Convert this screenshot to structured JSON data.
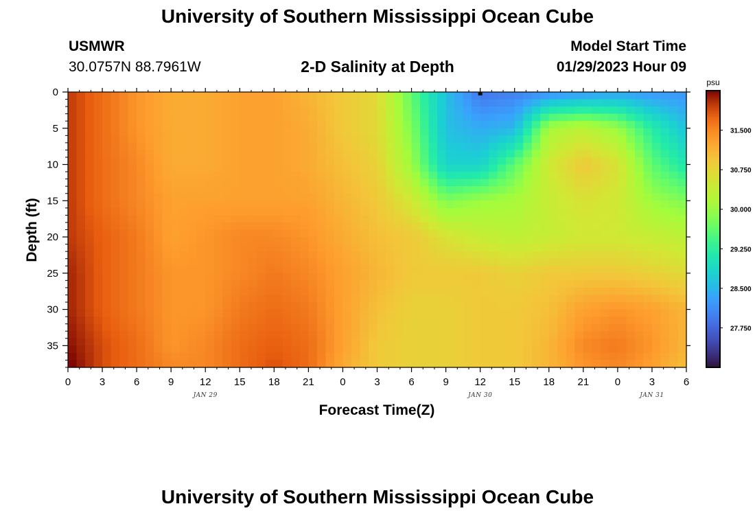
{
  "header": {
    "title": "University of Southern Mississippi Ocean Cube",
    "station": "USMWR",
    "coords": "30.0757N  88.7961W",
    "plot_title": "2-D Salinity at Depth",
    "model_label": "Model Start Time",
    "model_time": "01/29/2023 Hour 09"
  },
  "footer": {
    "title": "University of Southern Mississippi Ocean Cube"
  },
  "chart_data": {
    "type": "heatmap",
    "title": "2-D Salinity at Depth",
    "xlabel": "Forecast Time(Z)",
    "ylabel": "Depth (ft)",
    "x_ticks": [
      "0",
      "3",
      "6",
      "9",
      "12",
      "15",
      "18",
      "21",
      "0",
      "3",
      "6",
      "9",
      "12",
      "15",
      "18",
      "21",
      "0",
      "3",
      "6"
    ],
    "x_range_hours": [
      0,
      54
    ],
    "y_ticks": [
      "0",
      "5",
      "10",
      "15",
      "20",
      "25",
      "30",
      "35"
    ],
    "y_range": [
      0,
      38
    ],
    "y_inverted": true,
    "date_labels": [
      {
        "text": "JAN 29",
        "hour": 12
      },
      {
        "text": "JAN 30",
        "hour": 36
      },
      {
        "text": "JAN 31",
        "hour": 51
      }
    ],
    "colorbar": {
      "unit": "psu",
      "range": [
        27.0,
        32.25
      ],
      "ticks": [
        "31.500",
        "30.750",
        "30.000",
        "29.250",
        "28.500",
        "27.750"
      ],
      "tick_values": [
        31.5,
        30.75,
        30.0,
        29.25,
        28.5,
        27.75
      ],
      "colormap": "turbo"
    },
    "salinity_grid": {
      "x_hours": [
        0,
        3,
        6,
        9,
        12,
        15,
        18,
        21,
        24,
        27,
        30,
        33,
        36,
        39,
        42,
        45,
        48,
        51,
        54
      ],
      "depths_ft": [
        0,
        5,
        10,
        15,
        20,
        25,
        30,
        35,
        38
      ],
      "values": [
        [
          32.0,
          31.7,
          31.4,
          31.2,
          31.2,
          31.3,
          31.3,
          31.1,
          30.9,
          30.7,
          29.6,
          28.6,
          27.9,
          28.0,
          28.1,
          28.2,
          28.3,
          28.2,
          28.2
        ],
        [
          32.0,
          31.7,
          31.4,
          31.2,
          31.2,
          31.3,
          31.3,
          31.2,
          30.9,
          30.7,
          29.8,
          28.6,
          28.4,
          28.5,
          30.1,
          30.3,
          30.0,
          29.2,
          28.6
        ],
        [
          32.0,
          31.7,
          31.5,
          31.2,
          31.2,
          31.3,
          31.3,
          31.2,
          31.0,
          30.8,
          30.0,
          28.8,
          28.8,
          29.6,
          30.5,
          30.9,
          30.6,
          29.6,
          29.1
        ],
        [
          32.0,
          31.7,
          31.5,
          31.3,
          31.3,
          31.3,
          31.3,
          31.3,
          31.1,
          30.9,
          30.5,
          29.8,
          30.0,
          30.1,
          30.4,
          30.6,
          30.5,
          30.0,
          29.8
        ],
        [
          32.0,
          31.8,
          31.6,
          31.3,
          31.4,
          31.5,
          31.5,
          31.4,
          31.2,
          31.0,
          30.9,
          30.6,
          30.4,
          30.3,
          30.4,
          30.5,
          30.5,
          30.4,
          30.3
        ],
        [
          32.1,
          31.8,
          31.6,
          31.4,
          31.4,
          31.5,
          31.6,
          31.5,
          31.3,
          31.1,
          30.9,
          30.9,
          30.9,
          30.8,
          30.9,
          30.9,
          30.9,
          30.8,
          30.7
        ],
        [
          32.1,
          31.8,
          31.6,
          31.4,
          31.4,
          31.6,
          31.7,
          31.6,
          31.3,
          31.0,
          30.8,
          30.8,
          30.9,
          30.9,
          31.0,
          31.3,
          31.4,
          31.3,
          31.1
        ],
        [
          32.2,
          31.9,
          31.7,
          31.4,
          31.5,
          31.7,
          31.8,
          31.7,
          31.3,
          30.9,
          30.8,
          30.8,
          30.9,
          30.9,
          31.1,
          31.5,
          31.6,
          31.4,
          31.1
        ],
        [
          32.3,
          31.9,
          31.7,
          31.5,
          31.5,
          31.7,
          31.9,
          31.7,
          31.2,
          30.9,
          30.8,
          30.8,
          30.9,
          30.9,
          31.1,
          31.4,
          31.5,
          31.3,
          31.0
        ]
      ]
    },
    "marker": {
      "hour": 36,
      "depth_ft": 0,
      "shape": "square"
    }
  }
}
